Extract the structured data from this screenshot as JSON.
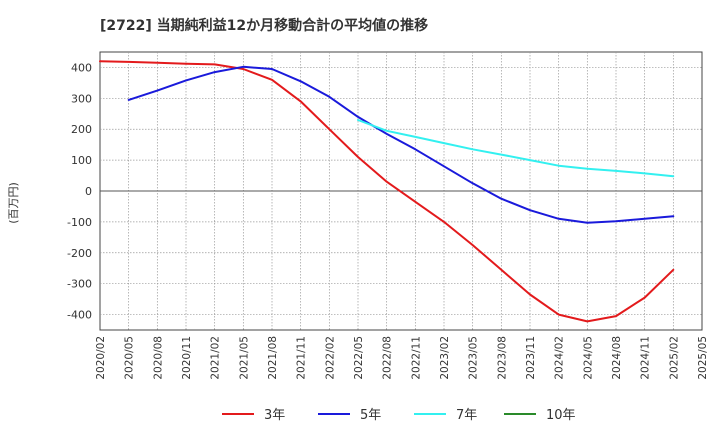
{
  "chart_data": {
    "type": "line",
    "title": "[2722]  当期純利益12か月移動合計の平均値の推移",
    "ylabel": "(百万円)",
    "xlabel": "",
    "ylim": [
      -450,
      450
    ],
    "yticks": [
      -400,
      -300,
      -200,
      -100,
      0,
      100,
      200,
      300,
      400
    ],
    "x_ticks": [
      "2020/02",
      "2020/05",
      "2020/08",
      "2020/11",
      "2021/02",
      "2021/05",
      "2021/08",
      "2021/11",
      "2022/02",
      "2022/05",
      "2022/08",
      "2022/11",
      "2023/02",
      "2023/05",
      "2023/08",
      "2023/11",
      "2024/02",
      "2024/05",
      "2024/08",
      "2024/11",
      "2025/02",
      "2025/05"
    ],
    "grid": true,
    "legend_position": "bottom",
    "series": [
      {
        "name": "3年",
        "color": "#e31a1c",
        "points": [
          [
            "2020/02",
            420
          ],
          [
            "2020/05",
            418
          ],
          [
            "2020/08",
            415
          ],
          [
            "2020/11",
            412
          ],
          [
            "2021/02",
            410
          ],
          [
            "2021/05",
            395
          ],
          [
            "2021/08",
            360
          ],
          [
            "2021/11",
            290
          ],
          [
            "2022/02",
            200
          ],
          [
            "2022/05",
            110
          ],
          [
            "2022/08",
            30
          ],
          [
            "2022/11",
            -35
          ],
          [
            "2023/02",
            -100
          ],
          [
            "2023/05",
            -175
          ],
          [
            "2023/08",
            -255
          ],
          [
            "2023/11",
            -335
          ],
          [
            "2024/02",
            -400
          ],
          [
            "2024/05",
            -422
          ],
          [
            "2024/08",
            -405
          ],
          [
            "2024/11",
            -345
          ],
          [
            "2025/02",
            -255
          ]
        ]
      },
      {
        "name": "5年",
        "color": "#1a1adb",
        "points": [
          [
            "2020/05",
            295
          ],
          [
            "2020/08",
            325
          ],
          [
            "2020/11",
            358
          ],
          [
            "2021/02",
            385
          ],
          [
            "2021/05",
            402
          ],
          [
            "2021/08",
            395
          ],
          [
            "2021/11",
            355
          ],
          [
            "2022/02",
            305
          ],
          [
            "2022/05",
            240
          ],
          [
            "2022/08",
            185
          ],
          [
            "2022/11",
            135
          ],
          [
            "2023/02",
            80
          ],
          [
            "2023/05",
            25
          ],
          [
            "2023/08",
            -25
          ],
          [
            "2023/11",
            -62
          ],
          [
            "2024/02",
            -90
          ],
          [
            "2024/05",
            -103
          ],
          [
            "2024/08",
            -98
          ],
          [
            "2024/11",
            -90
          ],
          [
            "2025/02",
            -82
          ]
        ]
      },
      {
        "name": "7年",
        "color": "#33f0f0",
        "points": [
          [
            "2022/05",
            230
          ],
          [
            "2022/08",
            195
          ],
          [
            "2022/11",
            175
          ],
          [
            "2023/02",
            155
          ],
          [
            "2023/05",
            135
          ],
          [
            "2023/08",
            118
          ],
          [
            "2023/11",
            100
          ],
          [
            "2024/02",
            82
          ],
          [
            "2024/05",
            72
          ],
          [
            "2024/08",
            65
          ],
          [
            "2024/11",
            57
          ],
          [
            "2025/02",
            48
          ]
        ]
      },
      {
        "name": "10年",
        "color": "#2a8a2a",
        "points": []
      }
    ]
  }
}
